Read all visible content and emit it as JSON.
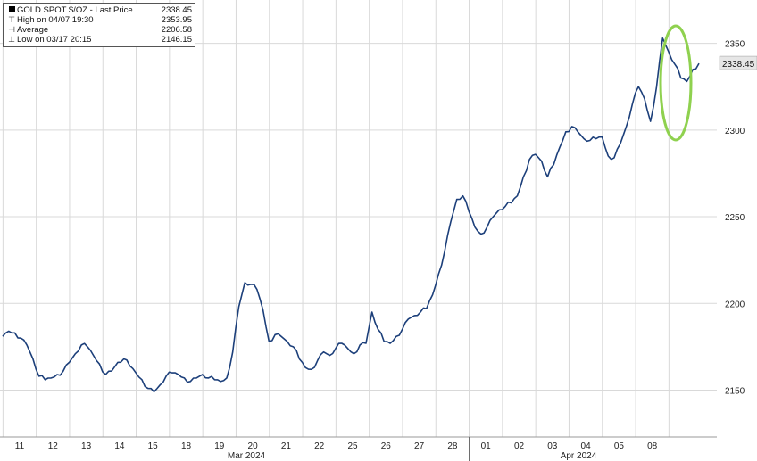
{
  "legend": {
    "series_label": "GOLD SPOT $/OZ - Last Price",
    "last_price": "2338.45",
    "high_label": "High on 04/07 19:30",
    "high_value": "2353.95",
    "avg_label": "Average",
    "avg_value": "2206.58",
    "low_label": "Low on 03/17 20:15",
    "low_value": "2146.15",
    "icons": [
      "black-square-icon",
      "high-marker-icon",
      "average-marker-icon",
      "low-marker-icon"
    ]
  },
  "last_price_tag": "2338.45",
  "colors": {
    "line": "#1c3f7a",
    "highlight_ellipse": "#8fd14f",
    "price_tag_bg": "#e6e6e6",
    "grid": "#d9d9d9"
  },
  "chart_data": {
    "type": "line",
    "series": [
      {
        "values": [
          2181,
          2184,
          2183,
          2180,
          2176,
          2168,
          2158,
          2156,
          2157,
          2159,
          2161,
          2166,
          2171,
          2176,
          2175,
          2170,
          2165,
          2159,
          2161,
          2166,
          2168,
          2164,
          2160,
          2156,
          2151,
          2149,
          2153,
          2158,
          2160,
          2159,
          2157,
          2155,
          2157,
          2159,
          2157,
          2156,
          2155,
          2157,
          2172,
          2198,
          2212,
          2211,
          2208,
          2196,
          2178,
          2182,
          2181,
          2178,
          2175,
          2168,
          2163,
          2162,
          2167,
          2172,
          2170,
          2174,
          2177,
          2174,
          2171,
          2176,
          2177,
          2195,
          2185,
          2178,
          2177,
          2181,
          2185,
          2191,
          2193,
          2195,
          2197,
          2205,
          2217,
          2230,
          2247,
          2260,
          2262,
          2253,
          2244,
          2240,
          2244,
          2250,
          2254,
          2256,
          2258,
          2262,
          2273,
          2283,
          2286,
          2282,
          2273,
          2280,
          2290,
          2299,
          2302,
          2299,
          2295,
          2294,
          2295,
          2296,
          2285,
          2284,
          2292,
          2302,
          2315,
          2325,
          2318,
          2305,
          2325,
          2353,
          2345,
          2338,
          2330,
          2328,
          2335,
          2338.45
        ]
      }
    ],
    "x_ticks": [
      "11",
      "12",
      "13",
      "14",
      "15",
      "18",
      "19",
      "20",
      "21",
      "22",
      "25",
      "26",
      "27",
      "28",
      "01",
      "02",
      "03",
      "04",
      "05",
      "08"
    ],
    "month_labels": [
      "Mar 2024",
      "Apr 2024"
    ],
    "y_ticks": [
      "2350",
      "2300",
      "2250",
      "2200",
      "2150"
    ],
    "ylim": [
      2123,
      2375
    ],
    "grid": true,
    "legend_position": "top-left",
    "annotation": "green ellipse around 04/05–04/08 spike"
  }
}
